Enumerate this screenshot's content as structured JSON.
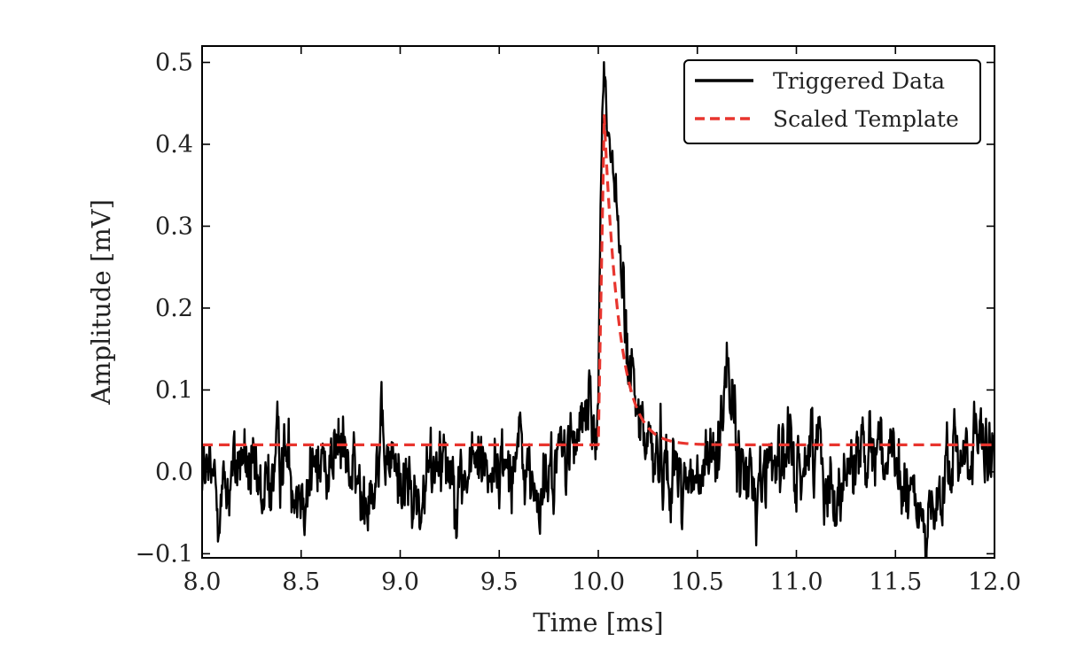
{
  "chart_data": {
    "type": "line",
    "title": "",
    "xlabel": "Time [ms]",
    "ylabel": "Amplitude [mV]",
    "xlim": [
      8.0,
      12.0
    ],
    "ylim": [
      -0.105,
      0.52
    ],
    "x_ticks": [
      8.0,
      8.5,
      9.0,
      9.5,
      10.0,
      10.5,
      11.0,
      11.5,
      12.0
    ],
    "x_tick_labels": [
      "8.0",
      "8.5",
      "9.0",
      "9.5",
      "10.0",
      "10.5",
      "11.0",
      "11.5",
      "12.0"
    ],
    "y_ticks": [
      -0.1,
      0.0,
      0.1,
      0.2,
      0.3,
      0.4,
      0.5
    ],
    "y_tick_labels": [
      "−0.1",
      "0.0",
      "0.1",
      "0.2",
      "0.3",
      "0.4",
      "0.5"
    ],
    "grid": false,
    "legend_position": "top-right",
    "series": [
      {
        "name": "Triggered Data",
        "color": "#000000",
        "style": "solid",
        "baseline": 0.005,
        "noise_amplitude": 0.03,
        "x": [
          8.0,
          8.1,
          8.2,
          8.3,
          8.4,
          8.5,
          8.6,
          8.7,
          8.8,
          8.9,
          9.0,
          9.1,
          9.2,
          9.3,
          9.4,
          9.5,
          9.6,
          9.7,
          9.8,
          9.9,
          9.95,
          9.99,
          10.0,
          10.01,
          10.02,
          10.03,
          10.04,
          10.05,
          10.06,
          10.08,
          10.1,
          10.12,
          10.15,
          10.18,
          10.2,
          10.25,
          10.3,
          10.4,
          10.5,
          10.6,
          10.65,
          10.7,
          10.8,
          10.9,
          11.0,
          11.1,
          11.2,
          11.3,
          11.4,
          11.5,
          11.6,
          11.7,
          11.8,
          11.9,
          12.0
        ],
        "y": [
          0.0,
          -0.03,
          0.02,
          -0.04,
          0.03,
          -0.02,
          0.01,
          0.03,
          -0.03,
          0.02,
          0.0,
          -0.05,
          0.04,
          -0.02,
          0.02,
          0.0,
          0.03,
          -0.04,
          0.02,
          0.04,
          0.08,
          0.04,
          0.12,
          0.3,
          0.44,
          0.48,
          0.44,
          0.42,
          0.4,
          0.36,
          0.3,
          0.22,
          0.14,
          0.09,
          0.06,
          0.04,
          0.02,
          0.0,
          -0.02,
          0.03,
          0.14,
          0.01,
          -0.02,
          0.03,
          0.0,
          0.04,
          -0.03,
          0.02,
          0.05,
          -0.01,
          -0.04,
          -0.06,
          0.02,
          0.03,
          0.0
        ]
      },
      {
        "name": "Scaled Template",
        "color": "#e8352e",
        "style": "dashed",
        "baseline": 0.033,
        "onset": 10.0,
        "peak": 0.435,
        "peak_time": 10.03,
        "decay_time_ms": 0.075,
        "x": [
          8.0,
          9.99,
          10.0,
          10.01,
          10.02,
          10.03,
          10.05,
          10.08,
          10.1,
          10.15,
          10.2,
          10.25,
          10.3,
          10.35,
          10.4,
          12.0
        ],
        "y": [
          0.033,
          0.033,
          0.033,
          0.25,
          0.4,
          0.435,
          0.4,
          0.3,
          0.24,
          0.14,
          0.085,
          0.058,
          0.045,
          0.038,
          0.035,
          0.033
        ]
      }
    ]
  }
}
